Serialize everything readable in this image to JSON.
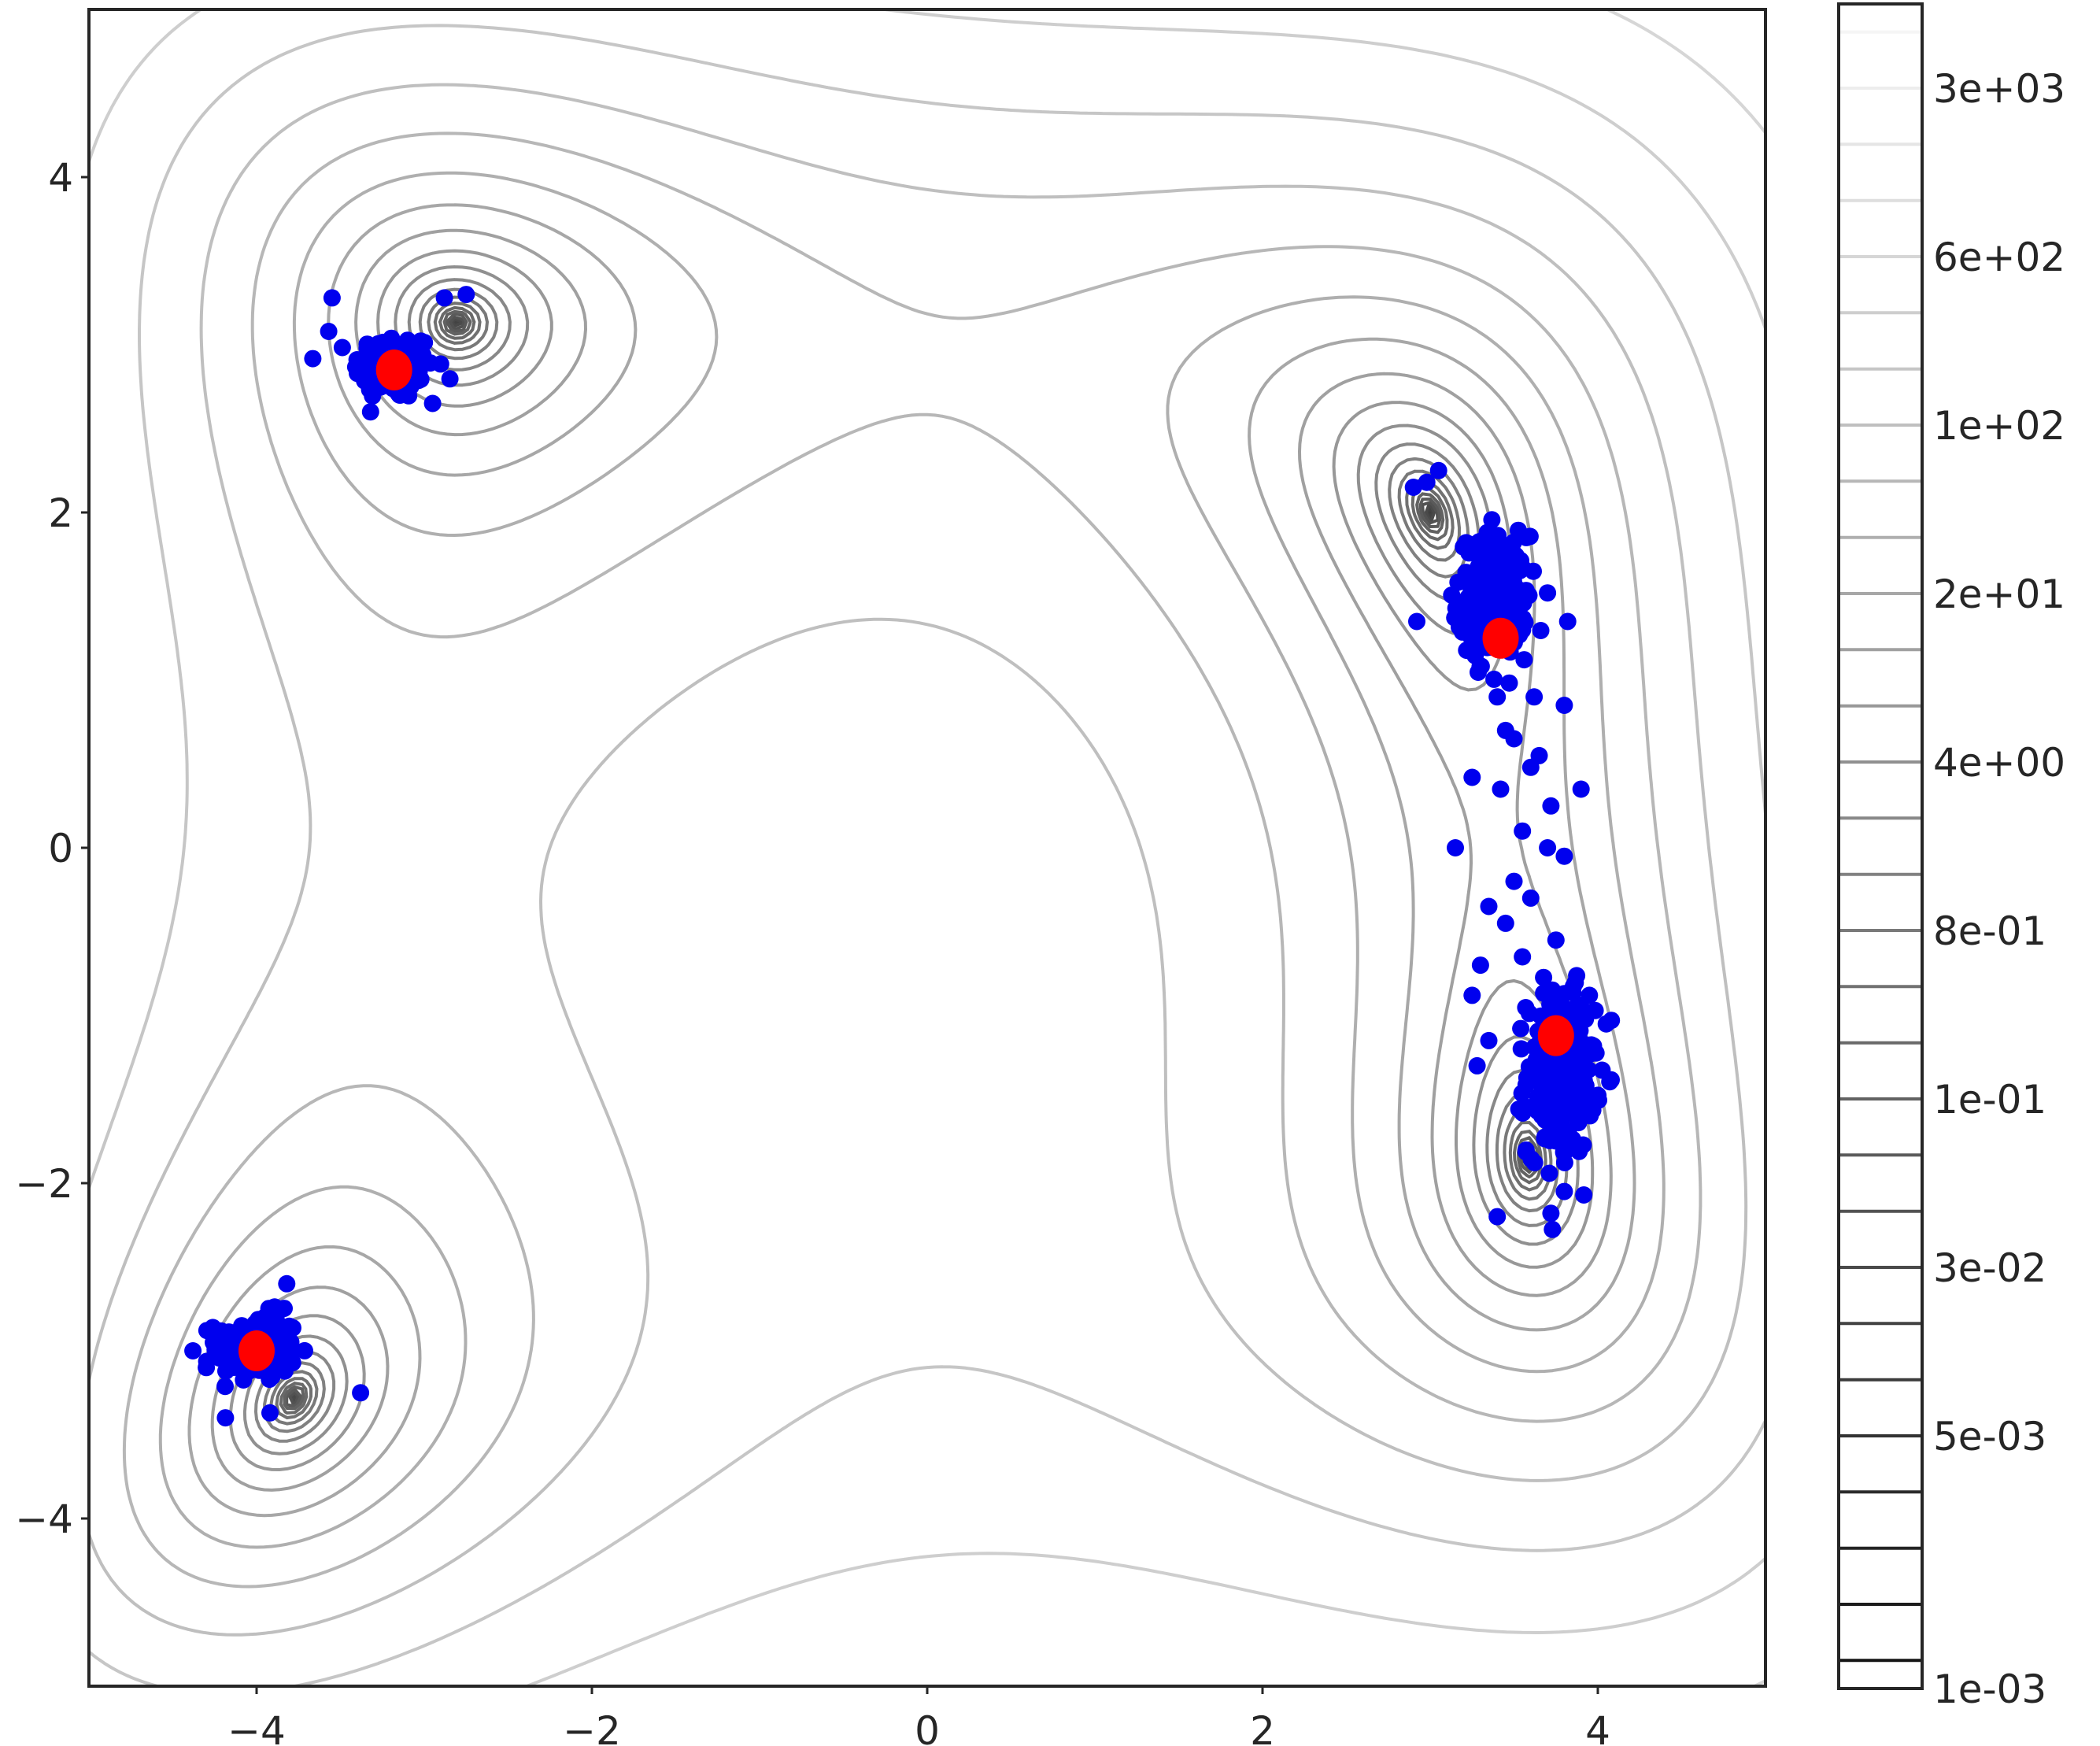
{
  "chart_data": {
    "type": "scatter",
    "title": "",
    "xlabel": "",
    "ylabel": "",
    "xlim": [
      -5,
      5
    ],
    "ylim": [
      -5,
      5
    ],
    "grid": false,
    "x_ticks": [
      -4,
      -2,
      0,
      2,
      4
    ],
    "y_ticks": [
      -4,
      -2,
      0,
      2,
      4
    ],
    "x_tick_labels": [
      "−4",
      "−2",
      "0",
      "2",
      "4"
    ],
    "y_tick_labels": [
      "−4",
      "−2",
      "0",
      "2",
      "4"
    ],
    "background": "contour lines of Himmelblau function (log-spaced levels, grayscale)",
    "contour_levels": {
      "min": 0.001,
      "max": 5000,
      "count": 30,
      "scale": "log"
    },
    "colorbar": {
      "scale": "log",
      "range": [
        0.001,
        5000
      ],
      "tick_labels": [
        "1e-03",
        "5e-03",
        "3e-02",
        "1e-01",
        "8e-01",
        "4e+00",
        "2e+01",
        "1e+02",
        "6e+02",
        "3e+03"
      ]
    },
    "minima": [
      {
        "x": -3.78,
        "y": -3.28
      },
      {
        "x": -2.81,
        "y": 3.13
      },
      {
        "x": 3.0,
        "y": 2.0
      },
      {
        "x": 3.58,
        "y": -1.85
      }
    ],
    "series": [
      {
        "kind": "samples",
        "color": "#0000ee",
        "clusters": [
          {
            "center": [
              -3.18,
              2.87
            ],
            "sx": 0.12,
            "sy": 0.1,
            "n": 140
          },
          {
            "center": [
              -4.0,
              -2.98
            ],
            "sx": 0.12,
            "sy": 0.1,
            "n": 140
          },
          {
            "center": [
              3.38,
              1.5
            ],
            "sx": 0.1,
            "sy": 0.18,
            "n": 260
          },
          {
            "center": [
              3.78,
              -1.35
            ],
            "sx": 0.1,
            "sy": 0.24,
            "n": 260
          }
        ],
        "outliers": [
          [
            -3.55,
            3.28
          ],
          [
            -3.57,
            3.08
          ],
          [
            -2.88,
            3.28
          ],
          [
            -2.75,
            3.3
          ],
          [
            -3.32,
            2.6
          ],
          [
            -2.95,
            2.65
          ],
          [
            -4.38,
            -3.0
          ],
          [
            -3.82,
            -2.6
          ],
          [
            -3.38,
            -3.25
          ],
          [
            -3.88,
            -2.78
          ],
          [
            -4.3,
            -3.1
          ],
          [
            -3.92,
            -3.37
          ],
          [
            2.9,
            2.15
          ],
          [
            2.98,
            2.18
          ],
          [
            3.05,
            2.25
          ],
          [
            2.92,
            1.35
          ],
          [
            3.7,
            1.52
          ],
          [
            3.82,
            1.35
          ],
          [
            3.62,
            0.9
          ],
          [
            3.8,
            0.85
          ],
          [
            3.5,
            0.65
          ],
          [
            3.65,
            0.55
          ],
          [
            3.25,
            0.42
          ],
          [
            3.42,
            0.35
          ],
          [
            3.6,
            0.48
          ],
          [
            3.9,
            0.35
          ],
          [
            3.55,
            0.1
          ],
          [
            3.15,
            0.0
          ],
          [
            3.72,
            0.25
          ],
          [
            3.5,
            -0.2
          ],
          [
            3.8,
            -0.05
          ],
          [
            3.35,
            -0.35
          ],
          [
            3.6,
            -0.3
          ],
          [
            3.45,
            -0.45
          ],
          [
            3.75,
            -0.55
          ],
          [
            3.55,
            -0.65
          ],
          [
            3.25,
            -0.88
          ],
          [
            3.35,
            -1.15
          ],
          [
            3.95,
            -0.88
          ],
          [
            4.05,
            -1.05
          ],
          [
            3.28,
            -1.3
          ],
          [
            3.4,
            -2.2
          ],
          [
            3.8,
            -2.05
          ],
          [
            3.72,
            -2.18
          ],
          [
            3.4,
            0.9
          ],
          [
            3.45,
            0.7
          ],
          [
            3.7,
            0.0
          ],
          [
            3.3,
            -0.7
          ]
        ]
      },
      {
        "kind": "modes",
        "color": "#ff0000",
        "points": [
          [
            -3.18,
            2.85
          ],
          [
            -4.0,
            -3.0
          ],
          [
            3.42,
            1.25
          ],
          [
            3.75,
            -1.12
          ]
        ]
      }
    ]
  }
}
